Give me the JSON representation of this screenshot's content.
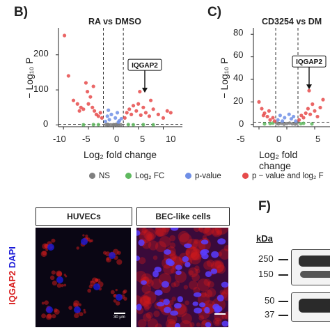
{
  "panel_b": {
    "letter": "B)",
    "title": "RA vs DMSO",
    "ylabel": "− Log₁₀ P",
    "xlabel": "Log₂ fold change",
    "yticks": [
      "200",
      "100",
      "0"
    ],
    "xticks": [
      "-10",
      "-5",
      "0",
      "5",
      "10"
    ],
    "annotation": "IQGAP2"
  },
  "panel_c": {
    "letter": "C)",
    "title": "CD3254 vs DM",
    "ylabel": "− Log₁₀ P",
    "xlabel": "Log₂ fold change",
    "yticks": [
      "80",
      "60",
      "40",
      "20",
      "0"
    ],
    "xticks": [
      "-5",
      "0",
      "5"
    ],
    "annotation": "IQGAP2"
  },
  "legend": {
    "items": [
      {
        "label": "NS",
        "color": "#7f7f7f"
      },
      {
        "label": "Log₂ FC",
        "color": "#5fb95f"
      },
      {
        "label": "p-value",
        "color": "#6f8fe6"
      },
      {
        "label": "p − value and log₂ F",
        "color": "#e64b4b"
      }
    ]
  },
  "panel_e": {
    "headers": [
      "HUVECs",
      "BEC-like cells"
    ],
    "side_label_red": "IQGAP2",
    "side_label_blue": "DAPI",
    "scale_text": "30 μm"
  },
  "panel_f": {
    "letter": "F)",
    "kda_label": "kDa",
    "markers": [
      "250",
      "150",
      "50",
      "37"
    ]
  },
  "colors": {
    "ns": "#7f7f7f",
    "fc": "#5fb95f",
    "pval": "#6f8fe6",
    "both": "#e64b4b",
    "iqgap_red": "#d81b1b",
    "dapi_blue": "#1a1ad8"
  },
  "chart_data": [
    {
      "type": "scatter",
      "title": "RA vs DMSO",
      "xlabel": "Log₂ fold change",
      "ylabel": "− Log₁₀ P",
      "xlim": [
        -11,
        13
      ],
      "ylim": [
        -5,
        265
      ],
      "xticks": [
        -10,
        -5,
        0,
        5,
        10
      ],
      "yticks": [
        0,
        100,
        200
      ],
      "thresholds": {
        "fc": [
          -2,
          2
        ],
        "p": 2
      },
      "annotation": {
        "label": "IQGAP2",
        "x": 6.3,
        "y": 88
      },
      "series": [
        {
          "name": "NS",
          "color": "#7f7f7f",
          "x": [
            -1.5,
            -1,
            -0.5,
            0,
            0.5,
            1,
            1.5,
            -1.2,
            0.8,
            0.2
          ],
          "y": [
            0.5,
            1,
            0.3,
            0.8,
            1.2,
            0.6,
            0.4,
            1.5,
            1.8,
            0.2
          ]
        },
        {
          "name": "Log₂ FC",
          "color": "#5fb95f",
          "x": [
            -6,
            -4,
            -3,
            3,
            4,
            6,
            8
          ],
          "y": [
            0.5,
            1,
            0.8,
            1.2,
            0.6,
            0.9,
            0.4
          ]
        },
        {
          "name": "p-value",
          "color": "#6f8fe6",
          "x": [
            -1.6,
            -1.2,
            -0.8,
            -0.4,
            0.4,
            0.8,
            1.2,
            1.6,
            -1,
            1
          ],
          "y": [
            10,
            25,
            15,
            30,
            20,
            35,
            12,
            18,
            42,
            8
          ]
        },
        {
          "name": "p − value and log₂ F",
          "color": "#e64b4b",
          "x": [
            -9.8,
            -9,
            -8,
            -7.2,
            -6.5,
            -6,
            -5.5,
            -5,
            -4.6,
            -4.2,
            -3.8,
            -3.4,
            -3,
            -2.6,
            -2.3,
            -5.2,
            -4,
            -6.8,
            2.3,
            2.7,
            3.2,
            3.6,
            4,
            4.6,
            5,
            5.5,
            6,
            6.5,
            7.2,
            8,
            9,
            10,
            10.8,
            11.5,
            5.3,
            7.5
          ],
          "y": [
            255,
            140,
            70,
            60,
            50,
            45,
            120,
            60,
            80,
            50,
            40,
            30,
            25,
            35,
            20,
            95,
            110,
            40,
            20,
            35,
            45,
            30,
            55,
            40,
            60,
            28,
            50,
            35,
            25,
            45,
            30,
            20,
            40,
            35,
            95,
            70
          ]
        }
      ]
    },
    {
      "type": "scatter",
      "title": "CD3254 vs DM",
      "xlabel": "Log₂ fold change",
      "ylabel": "− Log₁₀ P",
      "xlim": [
        -6,
        7
      ],
      "ylim": [
        -2,
        82
      ],
      "xticks": [
        -5,
        0,
        5
      ],
      "yticks": [
        0,
        20,
        40,
        60,
        80
      ],
      "thresholds": {
        "fc": [
          -2,
          2
        ],
        "p": 2
      },
      "annotation": {
        "label": "IQGAP2",
        "x": 4,
        "y": 30
      },
      "series": [
        {
          "name": "NS",
          "color": "#7f7f7f",
          "x": [
            -1.5,
            -1,
            -0.5,
            0,
            0.5,
            1,
            1.5,
            -1.8,
            1.8
          ],
          "y": [
            0.5,
            1,
            0.3,
            0.8,
            1.2,
            0.6,
            0.4,
            1.1,
            0.9
          ]
        },
        {
          "name": "Log₂ FC",
          "color": "#5fb95f",
          "x": [
            -4,
            -3,
            -2.5,
            2.5,
            3,
            4.5
          ],
          "y": [
            0.5,
            0.8,
            1.2,
            0.7,
            1,
            0.5
          ]
        },
        {
          "name": "p-value",
          "color": "#6f8fe6",
          "x": [
            -1.6,
            -1.2,
            -0.8,
            -0.4,
            0.4,
            0.8,
            1.2,
            1.6
          ],
          "y": [
            4,
            8,
            3,
            6,
            9,
            5,
            7,
            3
          ]
        },
        {
          "name": "p − value and log₂ F",
          "color": "#e64b4b",
          "x": [
            -5,
            -4.5,
            -4,
            -3.5,
            -3,
            -2.5,
            -2.2,
            -4.2,
            -3.2,
            2.2,
            2.6,
            3,
            3.4,
            3.8,
            4.2,
            4.6,
            5,
            5.5,
            6,
            4,
            6.5
          ],
          "y": [
            20,
            14,
            10,
            7,
            4,
            6,
            3,
            8,
            12,
            4,
            8,
            6,
            10,
            14,
            9,
            18,
            12,
            7,
            15,
            30,
            22
          ]
        }
      ]
    }
  ]
}
